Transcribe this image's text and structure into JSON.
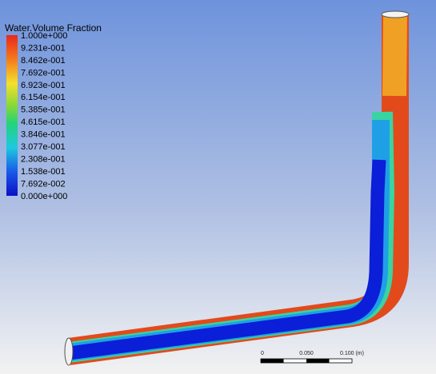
{
  "legend": {
    "title": "Water.Volume Fraction",
    "labels": [
      "1.000e+000",
      "9.231e-001",
      "8.462e-001",
      "7.692e-001",
      "6.923e-001",
      "6.154e-001",
      "5.385e-001",
      "4.615e-001",
      "3.846e-001",
      "3.077e-001",
      "2.308e-001",
      "1.538e-001",
      "7.692e-002",
      "0.000e+000"
    ]
  },
  "scale": {
    "labels": [
      "0",
      "0.050",
      "0.100 (m)"
    ]
  }
}
